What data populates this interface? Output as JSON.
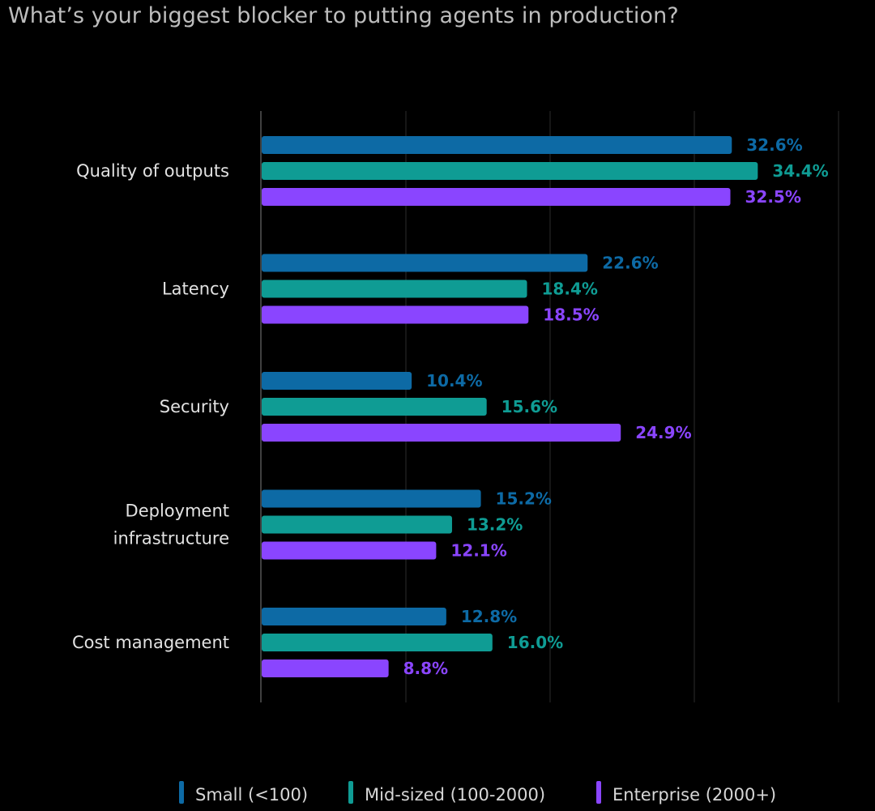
{
  "chart_data": {
    "type": "bar",
    "orientation": "horizontal",
    "title": "What’s your biggest blocker to putting agents in production?",
    "categories": [
      [
        "Quality of outputs"
      ],
      [
        "Latency"
      ],
      [
        "Security"
      ],
      [
        "Deployment",
        "infrastructure"
      ],
      [
        "Cost management"
      ]
    ],
    "series": [
      {
        "name": "Small (<100)",
        "color": "#0d6aa5",
        "values": [
          32.6,
          22.6,
          10.4,
          15.2,
          12.8
        ],
        "labels": [
          "32.6%",
          "22.6%",
          "10.4%",
          "15.2%",
          "12.8%"
        ]
      },
      {
        "name": "Mid-sized (100-2000)",
        "color": "#0f9c94",
        "values": [
          34.4,
          18.4,
          15.6,
          13.2,
          16.0
        ],
        "labels": [
          "34.4%",
          "18.4%",
          "15.6%",
          "13.2%",
          "16.0%"
        ]
      },
      {
        "name": "Enterprise (2000+)",
        "color": "#8a45ff",
        "values": [
          32.5,
          18.5,
          24.9,
          12.1,
          8.8
        ],
        "labels": [
          "32.5%",
          "18.5%",
          "24.9%",
          "12.1%",
          "8.8%"
        ]
      }
    ],
    "xlim": [
      0,
      40
    ],
    "grid": true,
    "legend": "bottom",
    "xlabel": "",
    "ylabel": ""
  }
}
